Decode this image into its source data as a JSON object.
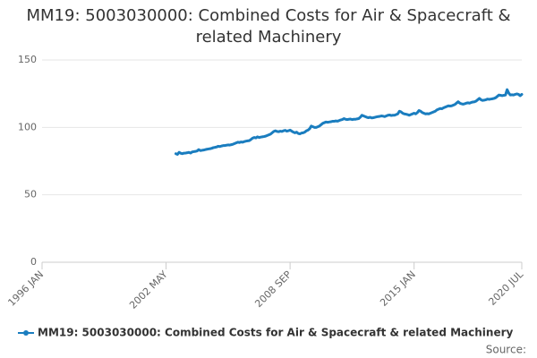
{
  "chart_data": {
    "type": "line",
    "title": "MM19: 5003030000: Combined Costs for Air & Spacecraft & related Machinery",
    "source": "Source:",
    "x": [
      "2002-11",
      "2002-12",
      "2003-01",
      "2003-02",
      "2003-03",
      "2003-04",
      "2003-05",
      "2003-06",
      "2003-07",
      "2003-08",
      "2003-09",
      "2003-10",
      "2003-11",
      "2003-12",
      "2004-01",
      "2004-02",
      "2004-03",
      "2004-04",
      "2004-05",
      "2004-06",
      "2004-07",
      "2004-08",
      "2004-09",
      "2004-10",
      "2004-11",
      "2004-12",
      "2005-01",
      "2005-02",
      "2005-03",
      "2005-04",
      "2005-05",
      "2005-06",
      "2005-07",
      "2005-08",
      "2005-09",
      "2005-10",
      "2005-11",
      "2005-12",
      "2006-01",
      "2006-02",
      "2006-03",
      "2006-04",
      "2006-05",
      "2006-06",
      "2006-07",
      "2006-08",
      "2006-09",
      "2006-10",
      "2006-11",
      "2006-12",
      "2007-01",
      "2007-02",
      "2007-03",
      "2007-04",
      "2007-05",
      "2007-06",
      "2007-07",
      "2007-08",
      "2007-09",
      "2007-10",
      "2007-11",
      "2007-12",
      "2008-01",
      "2008-02",
      "2008-03",
      "2008-04",
      "2008-05",
      "2008-06",
      "2008-07",
      "2008-08",
      "2008-09",
      "2008-10",
      "2008-11",
      "2008-12",
      "2009-01",
      "2009-02",
      "2009-03",
      "2009-04",
      "2009-05",
      "2009-06",
      "2009-07",
      "2009-08",
      "2009-09",
      "2009-10",
      "2009-11",
      "2009-12",
      "2010-01",
      "2010-02",
      "2010-03",
      "2010-04",
      "2010-05",
      "2010-06",
      "2010-07",
      "2010-08",
      "2010-09",
      "2010-10",
      "2010-11",
      "2010-12",
      "2011-01",
      "2011-02",
      "2011-03",
      "2011-04",
      "2011-05",
      "2011-06",
      "2011-07",
      "2011-08",
      "2011-09",
      "2011-10",
      "2011-11",
      "2011-12",
      "2012-01",
      "2012-02",
      "2012-03",
      "2012-04",
      "2012-05",
      "2012-06",
      "2012-07",
      "2012-08",
      "2012-09",
      "2012-10",
      "2012-11",
      "2012-12",
      "2013-01",
      "2013-02",
      "2013-03",
      "2013-04",
      "2013-05",
      "2013-06",
      "2013-07",
      "2013-08",
      "2013-09",
      "2013-10",
      "2013-11",
      "2013-12",
      "2014-01",
      "2014-02",
      "2014-03",
      "2014-04",
      "2014-05",
      "2014-06",
      "2014-07",
      "2014-08",
      "2014-09",
      "2014-10",
      "2014-11",
      "2014-12",
      "2015-01",
      "2015-02",
      "2015-03",
      "2015-04",
      "2015-05",
      "2015-06",
      "2015-07",
      "2015-08",
      "2015-09",
      "2015-10",
      "2015-11",
      "2015-12",
      "2016-01",
      "2016-02",
      "2016-03",
      "2016-04",
      "2016-05",
      "2016-06",
      "2016-07",
      "2016-08",
      "2016-09",
      "2016-10",
      "2016-11",
      "2016-12",
      "2017-01",
      "2017-02",
      "2017-03",
      "2017-04",
      "2017-05",
      "2017-06",
      "2017-07",
      "2017-08",
      "2017-09",
      "2017-10",
      "2017-11",
      "2017-12",
      "2018-01",
      "2018-02",
      "2018-03",
      "2018-04",
      "2018-05",
      "2018-06",
      "2018-07",
      "2018-08",
      "2018-09",
      "2018-10",
      "2018-11",
      "2018-12",
      "2019-01",
      "2019-02",
      "2019-03",
      "2019-04",
      "2019-05",
      "2019-06",
      "2019-07",
      "2019-08",
      "2019-09",
      "2019-10",
      "2019-11",
      "2019-12",
      "2020-01",
      "2020-02",
      "2020-03",
      "2020-04",
      "2020-05",
      "2020-06",
      "2020-07"
    ],
    "series": [
      {
        "name": "MM19: 5003030000: Combined Costs for Air & Spacecraft & related Machinery",
        "color": "#1a7dbf",
        "values": [
          80.5,
          80,
          81.5,
          80.8,
          80.5,
          80.9,
          81,
          81.2,
          81.5,
          81,
          81.8,
          82,
          82.2,
          82.5,
          83.5,
          82.8,
          83,
          83.2,
          83.5,
          83.8,
          84,
          84.2,
          84.5,
          85,
          85.2,
          85.5,
          86,
          85.8,
          86.2,
          86.5,
          86.5,
          86.8,
          87,
          86.9,
          87.2,
          87.5,
          88,
          88.5,
          89,
          88.8,
          89.2,
          89,
          89.5,
          89.8,
          90,
          90.2,
          91,
          92,
          92.5,
          92.2,
          93,
          92.5,
          92.8,
          93,
          93.2,
          93.5,
          94,
          94.5,
          95,
          96,
          97,
          97.5,
          97,
          96.8,
          97.2,
          97,
          97.5,
          97.8,
          97.2,
          97.5,
          98,
          97.2,
          96.5,
          96,
          96.5,
          95.5,
          95.2,
          95.8,
          96,
          96.5,
          97.5,
          98,
          99,
          101,
          100.5,
          100,
          100,
          100.5,
          101,
          102,
          103,
          103.5,
          104,
          103.8,
          104,
          104.2,
          104.5,
          104.5,
          104.8,
          104.6,
          105,
          105.5,
          105.8,
          106.5,
          106,
          105.8,
          106,
          106.2,
          105.8,
          106,
          106,
          106.3,
          106.5,
          107.5,
          109,
          108.5,
          108,
          107.5,
          107.2,
          107.5,
          107,
          107.2,
          107.5,
          107.8,
          108,
          108.2,
          108.5,
          108.3,
          108,
          108.5,
          109,
          109.2,
          108.8,
          109,
          109,
          109.5,
          110,
          112,
          111.5,
          110.5,
          110,
          109.8,
          109.5,
          109,
          109.5,
          110,
          110.5,
          110,
          111,
          112.5,
          112,
          111,
          110.5,
          110,
          110.2,
          110,
          110.5,
          111,
          111.5,
          112,
          113,
          113.5,
          114,
          113.8,
          114.5,
          115,
          115.5,
          116,
          115.8,
          116,
          116.5,
          117,
          118,
          119,
          118,
          117.5,
          117.2,
          117.5,
          118,
          118.2,
          118,
          118.5,
          118.8,
          119,
          119.5,
          120.5,
          121.5,
          120.5,
          120,
          120.2,
          120.5,
          121,
          120.8,
          121,
          121.2,
          121.5,
          122,
          123,
          124,
          123.8,
          123.5,
          123.8,
          124,
          128,
          125.5,
          124,
          124.2,
          124,
          124.5,
          124.8,
          124.5,
          123.5,
          124.5
        ]
      }
    ],
    "xlim": [
      "1996-01",
      "2020-07"
    ],
    "xticks": [
      {
        "value": "1996-01",
        "label": "1996 JAN"
      },
      {
        "value": "2002-05",
        "label": "2002 MAY"
      },
      {
        "value": "2008-09",
        "label": "2008 SEP"
      },
      {
        "value": "2015-01",
        "label": "2015 JAN"
      },
      {
        "value": "2020-07",
        "label": "2020 JUL"
      }
    ],
    "ylim": [
      0,
      150
    ],
    "yticks": [
      0,
      50,
      100,
      150
    ],
    "grid": true
  }
}
